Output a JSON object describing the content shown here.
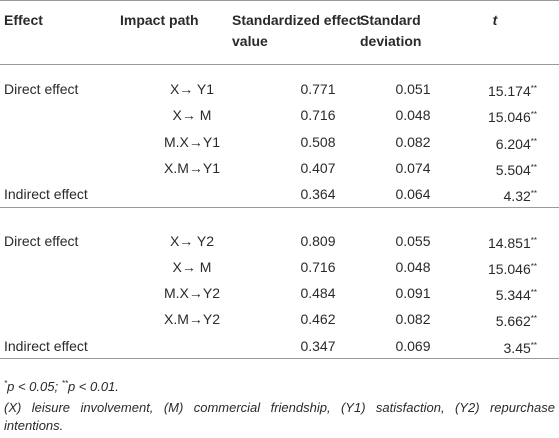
{
  "table": {
    "header": [
      "Effect",
      "Impact path",
      "Standardized effect value",
      "Standard deviation",
      "t"
    ],
    "groups": [
      {
        "rows": [
          {
            "effect": "Direct effect",
            "path": "X→ Y1",
            "value": "0.771",
            "sd": "0.051",
            "t": "15.174",
            "sig": "**"
          },
          {
            "path": "X→ M",
            "value": "0.716",
            "sd": "0.048",
            "t": "15.046",
            "sig": "**"
          },
          {
            "path": "M.X→Y1",
            "value": "0.508",
            "sd": "0.082",
            "t": "6.204",
            "sig": "**"
          },
          {
            "path": "X.M→Y1",
            "value": "0.407",
            "sd": "0.074",
            "t": "5.504",
            "sig": "**"
          },
          {
            "effect": "Indirect effect",
            "value": "0.364",
            "sd": "0.064",
            "t": "4.32",
            "sig": "**"
          }
        ]
      },
      {
        "rows": [
          {
            "effect": "Direct effect",
            "path": "X→ Y2",
            "value": "0.809",
            "sd": "0.055",
            "t": "14.851",
            "sig": "**"
          },
          {
            "path": "X→ M",
            "value": "0.716",
            "sd": "0.048",
            "t": "15.046",
            "sig": "**"
          },
          {
            "path": "M.X→Y2",
            "value": "0.484",
            "sd": "0.091",
            "t": "5.344",
            "sig": "**"
          },
          {
            "path": "X.M→Y2",
            "value": "0.462",
            "sd": "0.082",
            "t": "5.662",
            "sig": "**"
          },
          {
            "effect": "Indirect effect",
            "value": "0.347",
            "sd": "0.069",
            "t": "3.45",
            "sig": "**"
          }
        ]
      }
    ]
  },
  "footnotes": {
    "significance": [
      {
        "mark": "*",
        "text": "p < 0.05; "
      },
      {
        "mark": "**",
        "text": "p < 0.01."
      }
    ],
    "abbreviations": "(X) leisure involvement, (M) commercial friendship, (Y1) satisfaction, (Y2) repurchase intentions."
  }
}
